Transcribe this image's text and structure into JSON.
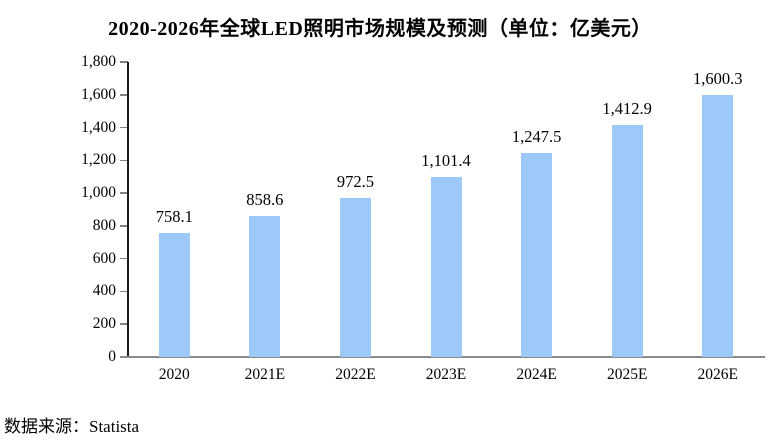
{
  "figure": {
    "title": "2020-2026年全球LED照明市场规模及预测（单位：亿美元）",
    "source": "数据来源：Statista"
  },
  "chart_data": {
    "type": "bar",
    "title": "2020-2026年全球LED照明市场规模及预测（单位：亿美元）",
    "categories": [
      "2020",
      "2021E",
      "2022E",
      "2023E",
      "2024E",
      "2025E",
      "2026E"
    ],
    "values": [
      758.1,
      858.6,
      972.5,
      1101.4,
      1247.5,
      1412.9,
      1600.3
    ],
    "value_labels": [
      "758.1",
      "858.6",
      "972.5",
      "1,101.4",
      "1,247.5",
      "1,412.9",
      "1,600.3"
    ],
    "xlabel": "",
    "ylabel": "",
    "ylim": [
      0,
      1800
    ],
    "ytick_step": 200,
    "ytick_labels": [
      "0",
      "200",
      "400",
      "600",
      "800",
      "1,000",
      "1,200",
      "1,400",
      "1,600",
      "1,800"
    ],
    "grid": false,
    "legend": false,
    "bar_color": "#9CC9F7",
    "source_note": "数据来源：Statista"
  },
  "colors": {
    "bar": "#9CC9F7",
    "y_axis_line": "#1a1a1a",
    "x_baseline": "#8a8a8a",
    "tick_mark": "#808080",
    "text": "#000000"
  }
}
